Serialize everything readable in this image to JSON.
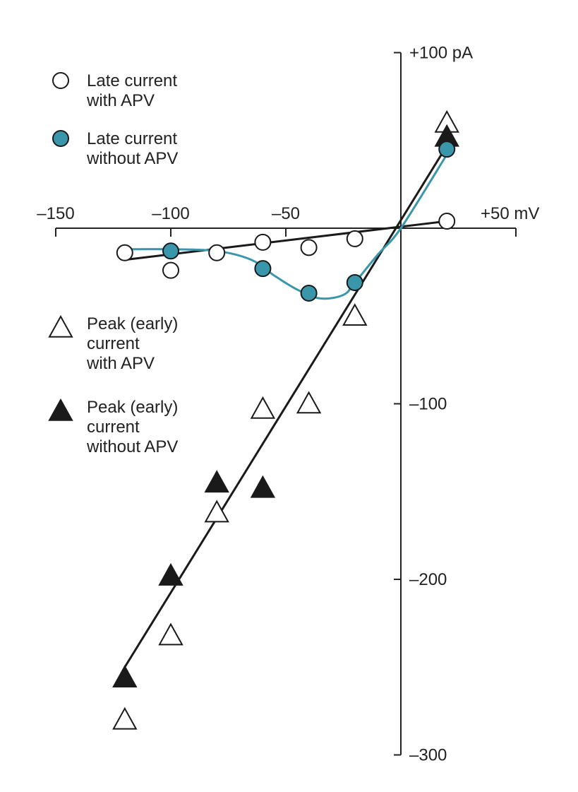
{
  "chart_data": {
    "type": "scatter",
    "title": "",
    "xlabel": "mV",
    "ylabel": "pA",
    "xlim": [
      -150,
      50
    ],
    "ylim": [
      -300,
      100
    ],
    "x_ticks": [
      {
        "value": -150,
        "label": "–150"
      },
      {
        "value": -100,
        "label": "–100"
      },
      {
        "value": -50,
        "label": "–50"
      },
      {
        "value": 50,
        "label": "+50 mV"
      }
    ],
    "y_ticks": [
      {
        "value": 100,
        "label": "+100 pA"
      },
      {
        "value": -100,
        "label": "–100"
      },
      {
        "value": -200,
        "label": "–200"
      },
      {
        "value": -300,
        "label": "–300"
      }
    ],
    "colors": {
      "teal": "#3a96ab",
      "black": "#1a1a1a"
    },
    "series": [
      {
        "name": "Late current with APV",
        "legend": [
          "Late current",
          "with APV"
        ],
        "marker": "open-circle",
        "x": [
          -120,
          -100,
          -80,
          -60,
          -40,
          -20,
          20
        ],
        "y": [
          -14,
          -24,
          -14,
          -8,
          -11,
          -6,
          4
        ]
      },
      {
        "name": "Late current without APV",
        "legend": [
          "Late current",
          "without APV"
        ],
        "marker": "filled-circle",
        "x": [
          -100,
          -60,
          -40,
          -20,
          20
        ],
        "y": [
          -13,
          -23,
          -37,
          -31,
          45
        ]
      },
      {
        "name": "Peak (early) current with APV",
        "legend": [
          "Peak (early)",
          "current",
          "with APV"
        ],
        "marker": "open-triangle",
        "x": [
          -120,
          -100,
          -80,
          -60,
          -40,
          -20,
          20
        ],
        "y": [
          -280,
          -232,
          -162,
          -103,
          -100,
          -50,
          60
        ]
      },
      {
        "name": "Peak (early) current without APV",
        "legend": [
          "Peak (early)",
          "current",
          "without APV"
        ],
        "marker": "filled-triangle",
        "x": [
          -120,
          -100,
          -80,
          -60,
          20
        ],
        "y": [
          -256,
          -198,
          -145,
          -148,
          52
        ]
      }
    ],
    "fit_lines": [
      {
        "name": "late-with-apv-fit",
        "x": [
          -120,
          20
        ],
        "y": [
          -18,
          4
        ]
      },
      {
        "name": "peak-fit",
        "x": [
          -120,
          20
        ],
        "y": [
          -250,
          47
        ]
      }
    ],
    "teal_curve": {
      "x": [
        -120,
        -100,
        -80,
        -65,
        -55,
        -45,
        -35,
        -25,
        -20,
        -10,
        0,
        20
      ],
      "y": [
        -12,
        -12,
        -13,
        -18,
        -27,
        -35,
        -40,
        -38,
        -31,
        -15,
        0,
        42
      ]
    }
  }
}
